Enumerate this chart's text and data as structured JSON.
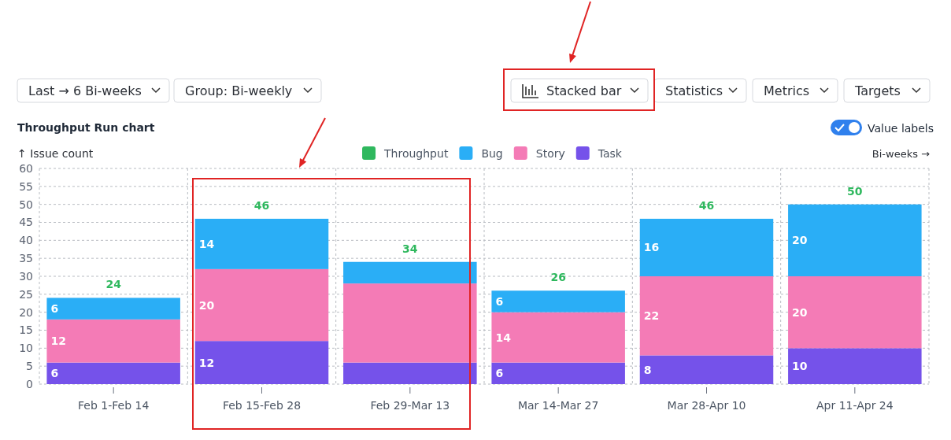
{
  "chart_data": {
    "type": "bar",
    "title": "Throughput Run chart",
    "ylabel": "↑ Issue count",
    "xlabel": "Bi-weeks →",
    "categories": [
      "Feb 1-Feb 14",
      "Feb 15-Feb 28",
      "Feb 29-Mar 13",
      "Mar 14-Mar 27",
      "Mar 28-Apr 10",
      "Apr 11-Apr 24"
    ],
    "stacked": true,
    "series": [
      {
        "name": "Task",
        "color": "#7552ea",
        "values": [
          6,
          12,
          6,
          6,
          8,
          10
        ],
        "value_labels": [
          "6",
          "12",
          null,
          "6",
          "8",
          "10"
        ]
      },
      {
        "name": "Story",
        "color": "#f47bb6",
        "values": [
          12,
          20,
          22,
          14,
          22,
          20
        ],
        "value_labels": [
          "12",
          "20",
          null,
          "14",
          "22",
          "20"
        ]
      },
      {
        "name": "Bug",
        "color": "#2aaef6",
        "values": [
          6,
          14,
          6,
          6,
          16,
          20
        ],
        "value_labels": [
          "6",
          "14",
          null,
          "6",
          "16",
          "20"
        ]
      }
    ],
    "totals": [
      "24",
      "46",
      "34",
      "26",
      "46",
      "50"
    ],
    "ylim": [
      0,
      60
    ],
    "yticks": [
      0,
      5,
      10,
      15,
      20,
      25,
      30,
      35,
      40,
      45,
      50,
      55,
      60
    ],
    "grid": true,
    "legend": "top",
    "annotations": [
      "Last → 6 Bi-weeks",
      "Group: Bi-weekly",
      "Stacked bar",
      "Statistics",
      "Metrics",
      "Targets",
      "Value labels",
      "Throughput"
    ]
  }
}
